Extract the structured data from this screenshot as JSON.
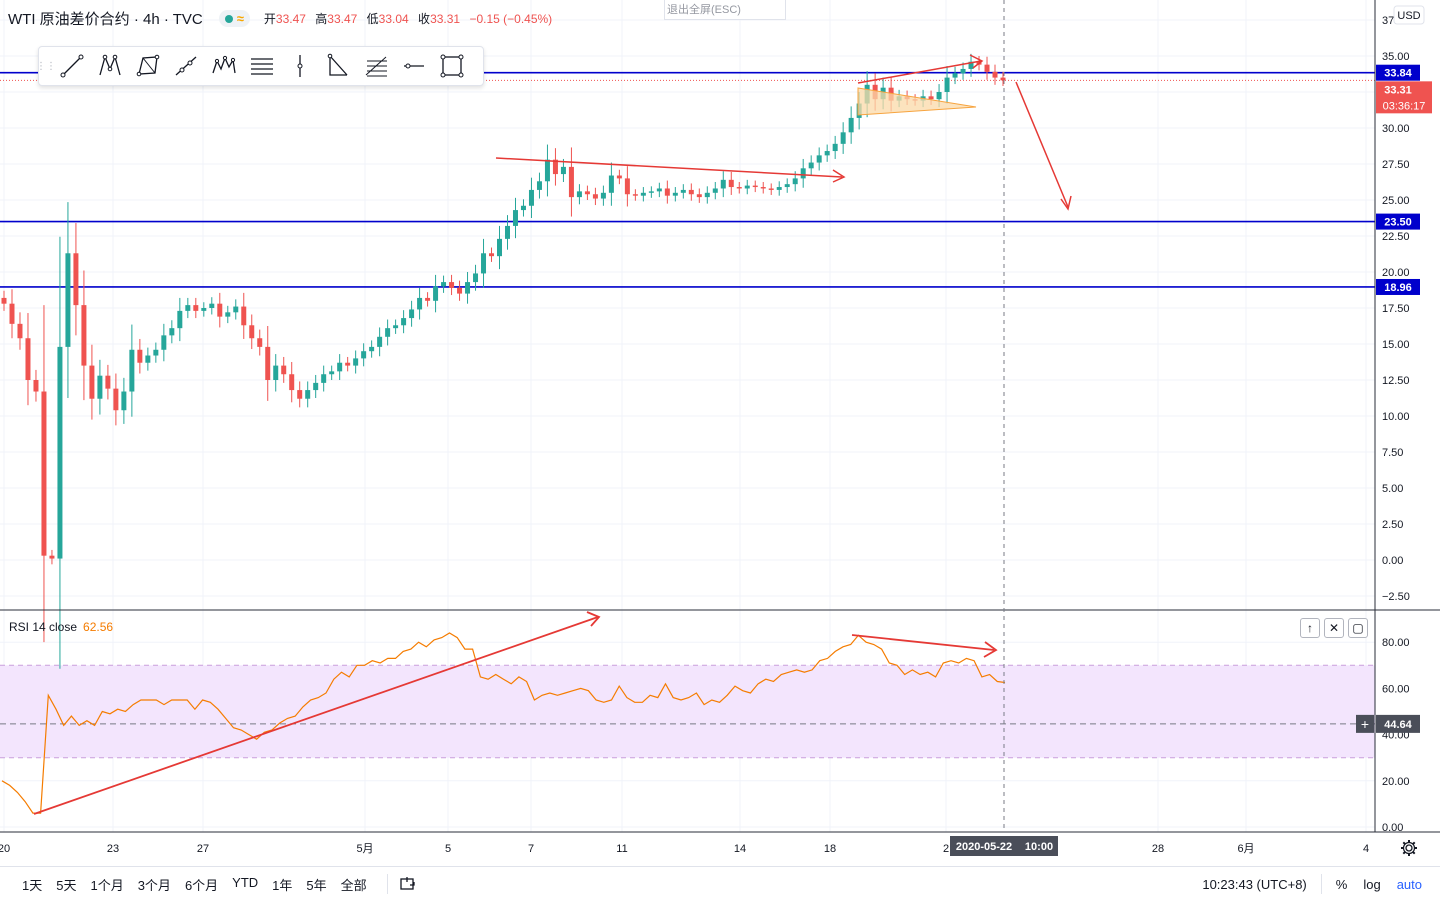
{
  "header": {
    "symbol": "WTI 原油差价合约 · 4h · TVC",
    "ohlc": [
      {
        "label": "开",
        "value": "33.47"
      },
      {
        "label": "高",
        "value": "33.47"
      },
      {
        "label": "低",
        "value": "33.04"
      },
      {
        "label": "收",
        "value": "33.31"
      }
    ],
    "change": "−0.15 (−0.45%)",
    "exit_fullscreen": "退出全屏(ESC)"
  },
  "toolbar": {
    "icons": [
      "trend-line-icon",
      "pattern-icon",
      "triangle-pattern-icon",
      "cross-line-icon",
      "elliott-wave-icon",
      "horizontal-lines-icon",
      "vertical-line-icon",
      "projection-icon",
      "fib-levels-icon",
      "horizontal-ray-icon",
      "rectangle-icon"
    ]
  },
  "chart_data": [
    {
      "type": "candlestick",
      "currency": "USD",
      "y_ticks": [
        "37.50",
        "35.00",
        "32.50",
        "30.00",
        "27.50",
        "25.00",
        "22.50",
        "20.00",
        "17.50",
        "15.00",
        "12.50",
        "10.00",
        "7.50",
        "5.00",
        "2.50",
        "0.00",
        "−2.50"
      ],
      "y_range": [
        -2.5,
        37.5
      ],
      "x_ticks": [
        "20",
        "23",
        "27",
        "5月",
        "5",
        "7",
        "11",
        "14",
        "18",
        "2",
        "28",
        "6月",
        "4"
      ],
      "horizontal_levels": [
        {
          "price": 33.84,
          "label": "33.84"
        },
        {
          "price": 23.5,
          "label": "23.50"
        },
        {
          "price": 18.96,
          "label": "18.96"
        }
      ],
      "last_price": {
        "price": 33.31,
        "label": "33.31",
        "countdown": "03:36:17"
      },
      "crosshair": {
        "date": "2020-05-22",
        "time": "10:00"
      },
      "closes": [
        17.8,
        16.4,
        15.4,
        12.5,
        11.7,
        0.3,
        0.1,
        14.8,
        21.3,
        17.7,
        13.5,
        11.2,
        12.8,
        11.9,
        10.4,
        11.7,
        14.6,
        13.7,
        14.2,
        14.6,
        15.6,
        16.1,
        17.3,
        17.7,
        17.3,
        17.5,
        17.8,
        16.9,
        17.2,
        17.6,
        16.3,
        15.4,
        14.8,
        12.5,
        13.5,
        12.9,
        11.8,
        11.2,
        11.8,
        12.3,
        12.9,
        13.1,
        13.7,
        13.5,
        14.0,
        14.5,
        14.8,
        15.5,
        16.1,
        16.3,
        16.8,
        17.4,
        18.2,
        18.0,
        19.0,
        19.3,
        18.9,
        18.5,
        19.3,
        19.9,
        21.3,
        21.1,
        22.3,
        23.2,
        24.3,
        24.6,
        25.7,
        26.3,
        27.8,
        26.8,
        27.3,
        25.2,
        25.6,
        25.4,
        25.1,
        25.5,
        26.7,
        26.5,
        25.4,
        25.3,
        25.5,
        25.6,
        25.8,
        25.3,
        25.5,
        25.7,
        25.4,
        25.2,
        25.5,
        25.8,
        26.4,
        25.9,
        25.8,
        26.0,
        25.9,
        25.8,
        25.7,
        25.9,
        26.1,
        26.5,
        27.2,
        27.6,
        28.1,
        28.4,
        28.9,
        29.7,
        30.7,
        31.7,
        33.0,
        32.0,
        32.8,
        31.9,
        32.2,
        32.0,
        31.9,
        32.2,
        32.0,
        32.5,
        33.5,
        33.8,
        34.1,
        34.6,
        34.4,
        33.9,
        33.5,
        33.31
      ]
    },
    {
      "type": "line",
      "indicator": "RSI 14 close",
      "current": "62.56",
      "y_ticks": [
        "80.00",
        "60.00",
        "40.00",
        "20.00",
        "0.00"
      ],
      "y_range": [
        0,
        100
      ],
      "band": [
        30,
        70
      ],
      "midline": {
        "value": 44.64,
        "label": "44.64"
      },
      "values": [
        20,
        18,
        15,
        11,
        6,
        6,
        57,
        51,
        44,
        48,
        44,
        46,
        44,
        50,
        49,
        51,
        50,
        53,
        55,
        55,
        55,
        53,
        55,
        55,
        55,
        51,
        55,
        54,
        51,
        47,
        43,
        42,
        40,
        38,
        41,
        42,
        45,
        47,
        48,
        52,
        55,
        56,
        58,
        64,
        67,
        65,
        70,
        70,
        72,
        71,
        73,
        73,
        76,
        77,
        80,
        78,
        81,
        82,
        84,
        82,
        77,
        77,
        65,
        64,
        66,
        64,
        62,
        65,
        63,
        55,
        57,
        58,
        57,
        58,
        59,
        60,
        59,
        55,
        54,
        55,
        61,
        56,
        54,
        54,
        57,
        56,
        62,
        56,
        55,
        56,
        58,
        53,
        55,
        54,
        57,
        61,
        59,
        58,
        62,
        64,
        63,
        66,
        67,
        68,
        67,
        68,
        72,
        73,
        76,
        78,
        79,
        83,
        80,
        79,
        77,
        71,
        70,
        66,
        68,
        66,
        67,
        65,
        71,
        72,
        71,
        73,
        72,
        65,
        66,
        63,
        62.56
      ]
    }
  ],
  "bottombar": {
    "timeframes": [
      "1天",
      "5天",
      "1个月",
      "3个月",
      "6个月",
      "YTD",
      "1年",
      "5年",
      "全部"
    ],
    "clock": "10:23:43 (UTC+8)",
    "percent": "%",
    "log": "log",
    "auto": "auto"
  },
  "colors": {
    "up": "#26a69a",
    "down": "#ef5350",
    "level": "#0000cc",
    "annotation": "#e53935",
    "rsi": "#f57c00",
    "band": "#f3e5fd"
  }
}
